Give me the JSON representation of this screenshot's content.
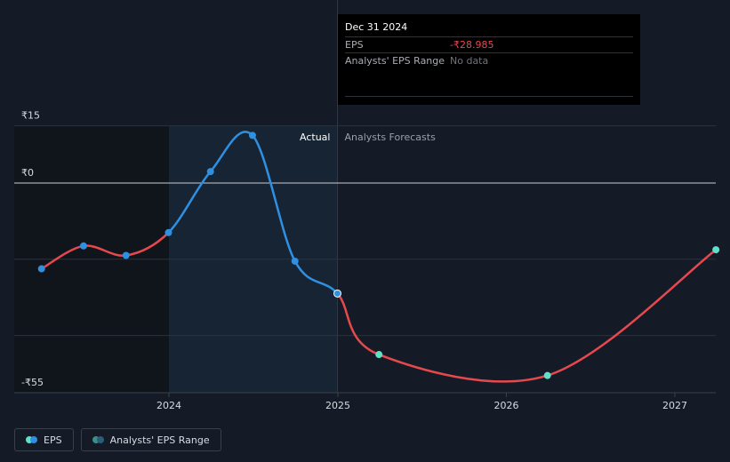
{
  "tooltip": {
    "date": "Dec 31 2024",
    "rows": [
      {
        "label": "EPS",
        "value": "-₹28.985"
      },
      {
        "label": "Analysts' EPS Range",
        "value": "No data"
      }
    ]
  },
  "labels": {
    "actual": "Actual",
    "forecast": "Analysts Forecasts"
  },
  "legend": {
    "eps": "EPS",
    "range": "Analysts' EPS Range"
  },
  "colors": {
    "background": "#151b26",
    "actual_line": "#2f8fe0",
    "forecast_line": "#e5484d",
    "forecast_point": "#5fe0c8",
    "past_shade": "#10151c",
    "highlight_shade": "#162434",
    "grid": "#2c323c",
    "zero_line": "#c9ccd2"
  },
  "chart_data": {
    "type": "line",
    "title": "",
    "xlabel": "",
    "ylabel": "",
    "ylim": [
      -55,
      15
    ],
    "y_ticks": [
      {
        "label": "₹15",
        "value": 15
      },
      {
        "label": "₹0",
        "value": 0
      },
      {
        "label": "-₹55",
        "value": -55
      }
    ],
    "x_ticks": [
      {
        "label": "2024",
        "value": "2024-01-01"
      },
      {
        "label": "2025",
        "value": "2025-01-01"
      },
      {
        "label": "2026",
        "value": "2026-01-01"
      },
      {
        "label": "2027",
        "value": "2027-01-01"
      }
    ],
    "xlim": [
      "2023-01-01",
      "2027-03-31"
    ],
    "today": "2024-12-31",
    "series": [
      {
        "name": "EPS",
        "points": [
          {
            "x": "2023-03-31",
            "y": -22.5,
            "kind": "actual"
          },
          {
            "x": "2023-06-30",
            "y": -16.5,
            "kind": "actual"
          },
          {
            "x": "2023-09-30",
            "y": -19,
            "kind": "actual"
          },
          {
            "x": "2023-12-31",
            "y": -13,
            "kind": "actual"
          },
          {
            "x": "2024-03-31",
            "y": 3,
            "kind": "actual"
          },
          {
            "x": "2024-06-30",
            "y": 12.5,
            "kind": "actual"
          },
          {
            "x": "2024-09-30",
            "y": -20.5,
            "kind": "actual"
          },
          {
            "x": "2024-12-31",
            "y": -28.985,
            "kind": "actual"
          },
          {
            "x": "2025-03-31",
            "y": -45,
            "kind": "forecast"
          },
          {
            "x": "2026-03-31",
            "y": -50.5,
            "kind": "forecast"
          },
          {
            "x": "2027-03-31",
            "y": -17.5,
            "kind": "forecast"
          }
        ]
      }
    ]
  }
}
